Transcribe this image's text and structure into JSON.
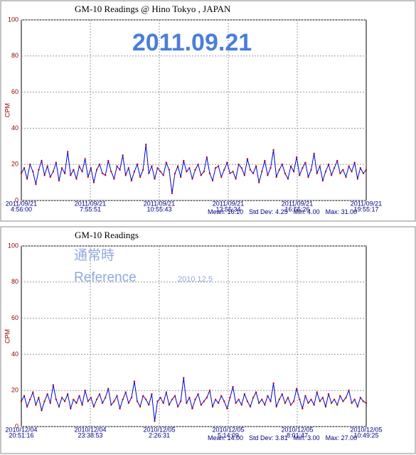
{
  "chart_data": [
    {
      "type": "line",
      "title": "GM-10 Readings   @ Hino  Tokyo , JAPAN",
      "y_label": "CPM",
      "annotations": [
        "2011.09.21"
      ],
      "xtick_labels": [
        [
          "2011/09/21",
          "4:56:00"
        ],
        [
          "2011/09/21",
          "7:55:51"
        ],
        [
          "2011/09/21",
          "10:55:43"
        ],
        [
          "2011/09/21",
          "13:55:34"
        ],
        [
          "2011/09/21",
          "16:55:26"
        ],
        [
          "2011/09/21",
          "19:55:17"
        ]
      ],
      "stats": [
        "Mean: 16.10",
        "Std Dev: 4.25",
        "Min: 4.00",
        "Max: 31.00"
      ],
      "ylim": [
        0,
        100
      ],
      "yticks": [
        0,
        20,
        40,
        60,
        80,
        100
      ],
      "grid": true,
      "series": [
        {
          "name": "CPM",
          "color": "#0000cc",
          "marker_color": "#cc0000",
          "values": [
            15,
            18,
            12,
            20,
            16,
            9,
            17,
            22,
            14,
            19,
            13,
            16,
            21,
            11,
            18,
            15,
            27,
            14,
            17,
            12,
            19,
            16,
            23,
            13,
            18,
            10,
            17,
            20,
            15,
            14,
            22,
            16,
            12,
            19,
            17,
            25,
            14,
            18,
            11,
            16,
            20,
            13,
            17,
            31,
            15,
            19,
            12,
            18,
            16,
            14,
            21,
            17,
            4,
            15,
            19,
            13,
            22,
            16,
            18,
            12,
            17,
            20,
            14,
            16,
            24,
            15,
            11,
            18,
            19,
            13,
            17,
            21,
            15,
            16,
            12,
            20,
            18,
            14,
            23,
            17,
            15,
            19,
            10,
            16,
            22,
            14,
            18,
            28,
            13,
            17,
            20,
            15,
            12,
            19,
            16,
            24,
            14,
            18,
            21,
            13,
            17,
            26,
            15,
            19,
            11,
            16,
            20,
            14,
            18,
            22,
            15,
            17,
            13,
            19,
            16,
            21,
            12,
            18,
            15,
            17
          ]
        }
      ]
    },
    {
      "type": "line",
      "title": "GM-10 Readings",
      "y_label": "CPM",
      "annotations": [
        "通常時",
        "Reference",
        "2010.12.5"
      ],
      "xtick_labels": [
        [
          "2010/12/04",
          "20:51:16"
        ],
        [
          "2010/12/04",
          "23:38:53"
        ],
        [
          "2010/12/05",
          "2:26:31"
        ],
        [
          "2010/12/05",
          "5:14:09"
        ],
        [
          "2010/12/05",
          "8:01:47"
        ],
        [
          "2010/12/05",
          "10:49:25"
        ]
      ],
      "stats": [
        "Mean: 14.00",
        "Std Dev: 3.81",
        "Min: 3.00",
        "Max: 27.00"
      ],
      "ylim": [
        0,
        100
      ],
      "yticks": [
        0,
        20,
        40,
        60,
        80,
        100
      ],
      "grid": true,
      "series": [
        {
          "name": "CPM",
          "color": "#0000cc",
          "marker_color": "#cc0000",
          "values": [
            14,
            17,
            11,
            15,
            19,
            12,
            16,
            9,
            14,
            18,
            13,
            23,
            15,
            11,
            16,
            14,
            18,
            10,
            15,
            13,
            17,
            12,
            20,
            14,
            16,
            11,
            15,
            18,
            13,
            16,
            21,
            12,
            14,
            17,
            10,
            15,
            19,
            13,
            16,
            25,
            14,
            11,
            17,
            15,
            12,
            18,
            3,
            14,
            16,
            13,
            19,
            12,
            15,
            17,
            11,
            14,
            27,
            13,
            16,
            10,
            15,
            18,
            12,
            14,
            16,
            20,
            11,
            15,
            13,
            17,
            14,
            10,
            16,
            22,
            13,
            15,
            12,
            18,
            14,
            11,
            16,
            19,
            13,
            15,
            12,
            17,
            14,
            24,
            11,
            15,
            18,
            13,
            16,
            12,
            14,
            21,
            15,
            10,
            17,
            13,
            15,
            12,
            19,
            14,
            16,
            11,
            18,
            13,
            15,
            12,
            17,
            14,
            16,
            20,
            13,
            15,
            11,
            16,
            14,
            13
          ]
        }
      ]
    }
  ]
}
